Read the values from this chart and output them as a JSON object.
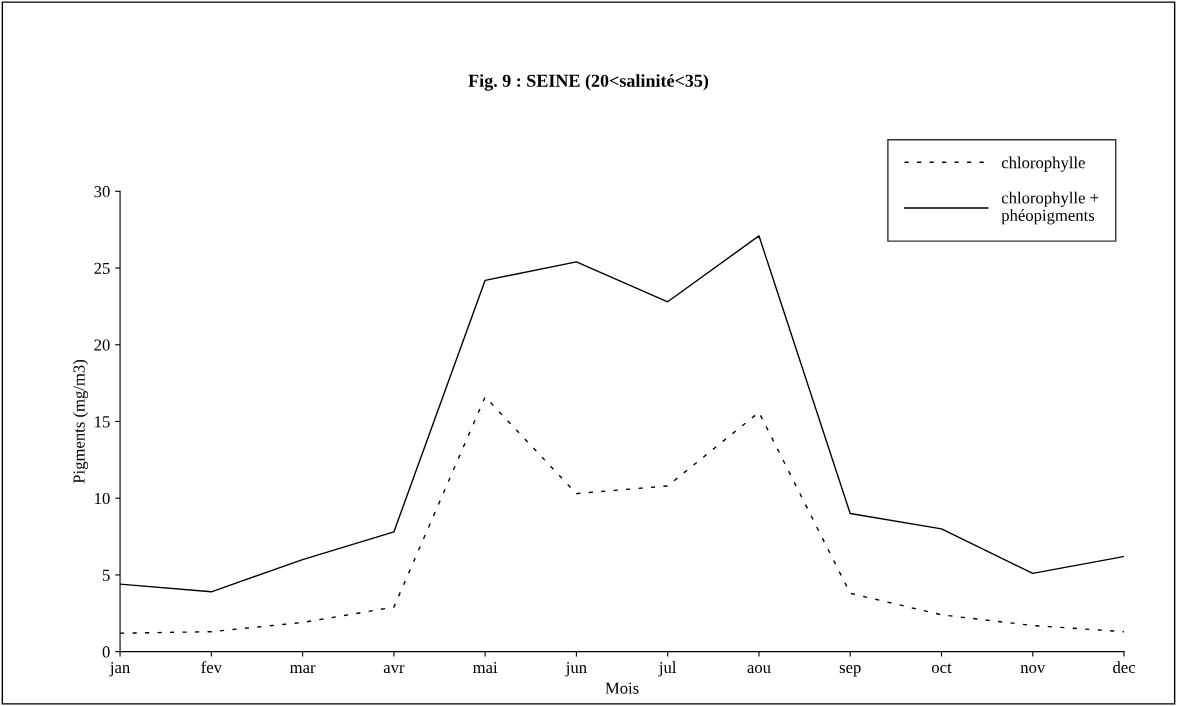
{
  "chart_data": {
    "type": "line",
    "title": "Fig. 9 : SEINE (20<salinité<35)",
    "xlabel": "Mois",
    "ylabel": "Pigments (mg/m3)",
    "categories": [
      "jan",
      "fev",
      "mar",
      "avr",
      "mai",
      "jun",
      "jul",
      "aou",
      "sep",
      "oct",
      "nov",
      "dec"
    ],
    "series": [
      {
        "name": "chlorophylle",
        "color": "#000000",
        "line_style": "dashed",
        "values": [
          1.2,
          1.3,
          1.9,
          2.9,
          16.6,
          10.3,
          10.8,
          15.6,
          3.8,
          2.4,
          1.7,
          1.3
        ]
      },
      {
        "name": "chlorophylle +\nphéopigments",
        "color": "#000000",
        "line_style": "solid",
        "values": [
          4.4,
          3.9,
          6.0,
          7.8,
          24.2,
          25.4,
          22.8,
          27.1,
          9.0,
          8.0,
          5.1,
          6.2
        ]
      }
    ],
    "ylim": [
      0,
      30
    ],
    "yticks": [
      0,
      5,
      10,
      15,
      20,
      25,
      30
    ],
    "grid": false,
    "legend": "top right",
    "marker": "none"
  }
}
